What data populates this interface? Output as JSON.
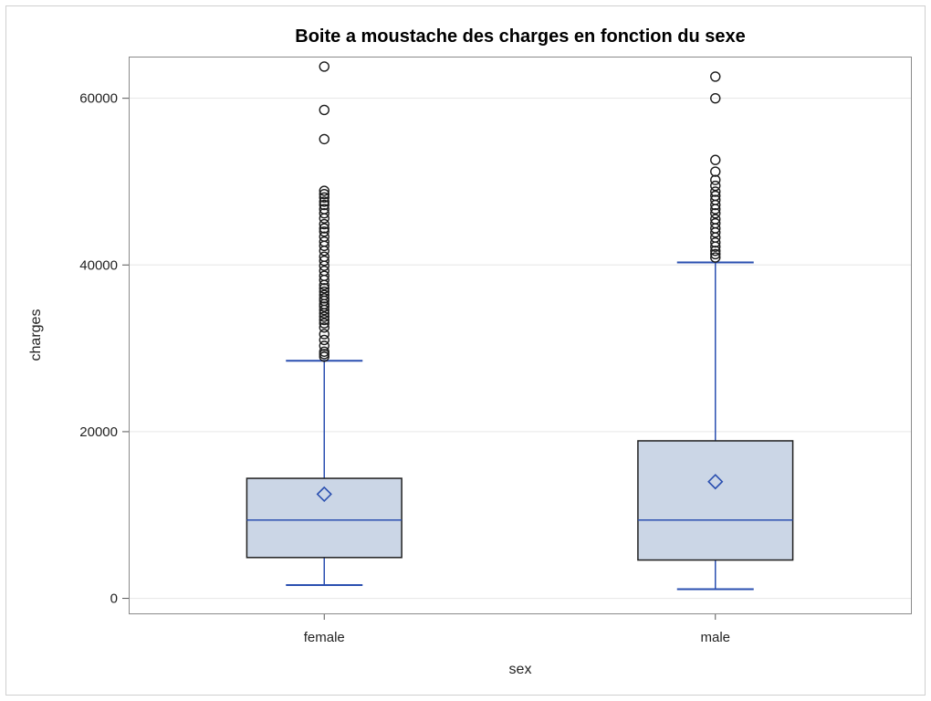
{
  "chart_data": {
    "type": "box",
    "title": "Boite a moustache des charges en fonction du sexe",
    "xlabel": "sex",
    "ylabel": "charges",
    "ylim": [
      -1800,
      65000
    ],
    "yticks": [
      0,
      20000,
      40000,
      60000
    ],
    "grid": true,
    "categories": [
      "female",
      "male"
    ],
    "boxes": [
      {
        "category": "female",
        "whisker_low": 1600,
        "q1": 4900,
        "median": 9400,
        "q3": 14400,
        "whisker_high": 28500,
        "mean": 12500,
        "outliers": [
          29000,
          29300,
          29600,
          30300,
          31000,
          31700,
          32500,
          33000,
          33400,
          33800,
          34200,
          34600,
          35000,
          35300,
          35700,
          36000,
          36400,
          36800,
          37200,
          37600,
          38200,
          38700,
          39300,
          39900,
          40500,
          41000,
          41700,
          42300,
          42800,
          43400,
          44000,
          44400,
          44900,
          45600,
          46200,
          46700,
          47200,
          47600,
          48100,
          48500,
          48900,
          55100,
          58600,
          63800
        ]
      },
      {
        "category": "male",
        "whisker_low": 1100,
        "q1": 4600,
        "median": 9400,
        "q3": 18900,
        "whisker_high": 40300,
        "mean": 14000,
        "outliers": [
          40900,
          41300,
          41700,
          42200,
          42700,
          43300,
          43900,
          44400,
          45000,
          45500,
          46200,
          46700,
          47200,
          47800,
          48300,
          48800,
          49500,
          50200,
          51200,
          52600,
          60000,
          62600
        ]
      }
    ],
    "colors": {
      "box_fill": "#cbd6e6",
      "box_border": "#1f1f1f",
      "median_line": "#2a4fb0",
      "whisker": "#2a4fb0",
      "mean_marker": "#2a4fb0",
      "outlier": "#1a1a1a",
      "grid": "#e6e6e6",
      "frame": "#8a8a8a"
    }
  }
}
